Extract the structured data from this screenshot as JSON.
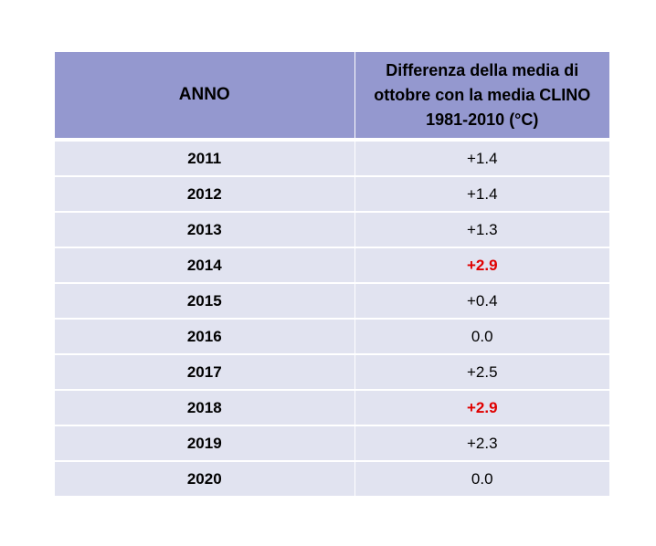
{
  "table": {
    "header": {
      "col1": "ANNO",
      "col2": "Differenza  della media di ottobre con la media CLINO 1981-2010 (°C)"
    },
    "rows": [
      {
        "year": "2011",
        "value": "+1.4",
        "highlight": false
      },
      {
        "year": "2012",
        "value": "+1.4",
        "highlight": false
      },
      {
        "year": "2013",
        "value": "+1.3",
        "highlight": false
      },
      {
        "year": "2014",
        "value": "+2.9",
        "highlight": true
      },
      {
        "year": "2015",
        "value": "+0.4",
        "highlight": false
      },
      {
        "year": "2016",
        "value": "0.0",
        "highlight": false
      },
      {
        "year": "2017",
        "value": "+2.5",
        "highlight": false
      },
      {
        "year": "2018",
        "value": "+2.9",
        "highlight": true
      },
      {
        "year": "2019",
        "value": "+2.3",
        "highlight": false
      },
      {
        "year": "2020",
        "value": "0.0",
        "highlight": false
      }
    ]
  },
  "colors": {
    "header_bg": "#9498cf",
    "row_bg": "#e1e3f0",
    "highlight_text": "#e00000"
  }
}
